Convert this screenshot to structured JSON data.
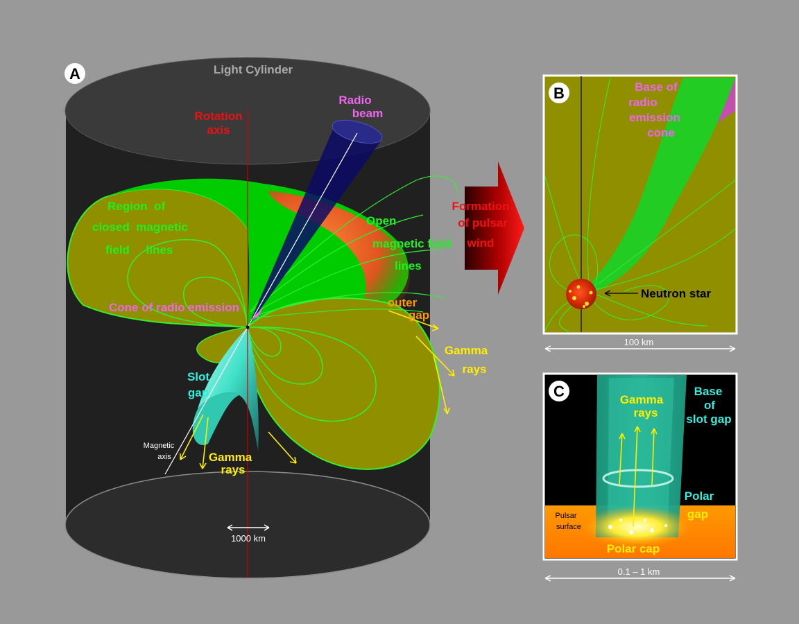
{
  "panel_a": {
    "letter": "A",
    "light_cylinder": "Light  Cylinder",
    "rotation_axis": [
      "Rotation",
      "axis"
    ],
    "radio_beam": [
      "Radio",
      "beam"
    ],
    "closed_region": [
      "Region  of",
      "closed  magnetic",
      "field     lines"
    ],
    "open_lines": [
      "Open",
      "magnetic field",
      "lines"
    ],
    "radio_cone": "Cone of radio emission",
    "outer_gap": [
      "outer",
      "gap"
    ],
    "gamma_right": [
      "Gamma",
      "rays"
    ],
    "slot_gap": [
      "Slot",
      "gap"
    ],
    "magnetic_axis": [
      "Magnetic",
      "axis"
    ],
    "gamma_bottom": [
      "Gamma",
      "rays"
    ],
    "scale": "1000 km"
  },
  "arrow": {
    "label": [
      "Formation",
      "of pulsar",
      "wind"
    ]
  },
  "panel_b": {
    "letter": "B",
    "base_radio_cone": [
      "Base of",
      "radio",
      "emission",
      "cone"
    ],
    "neutron_star": "Neutron star",
    "scale": "100 km"
  },
  "panel_c": {
    "letter": "C",
    "gamma_rays": [
      "Gamma",
      "rays"
    ],
    "base_slot_gap": [
      "Base",
      "of",
      "slot gap"
    ],
    "polar_gap": [
      "Polar",
      "gap"
    ],
    "pulsar_surface": [
      "Pulsar",
      "surface"
    ],
    "polar_cap": "Polar cap",
    "scale": "0.1 – 1 km"
  },
  "colors": {
    "background": "#999999",
    "cylinder": "#202020",
    "closed_region": "#8f8f00",
    "field_lines": "#33ee33",
    "label_green": "#22dd22",
    "label_magenta": "#ee66ee",
    "label_red": "#ee1111",
    "label_yellow": "#ffee00",
    "label_orange": "#ff9900",
    "label_cyan": "#33eedd"
  }
}
